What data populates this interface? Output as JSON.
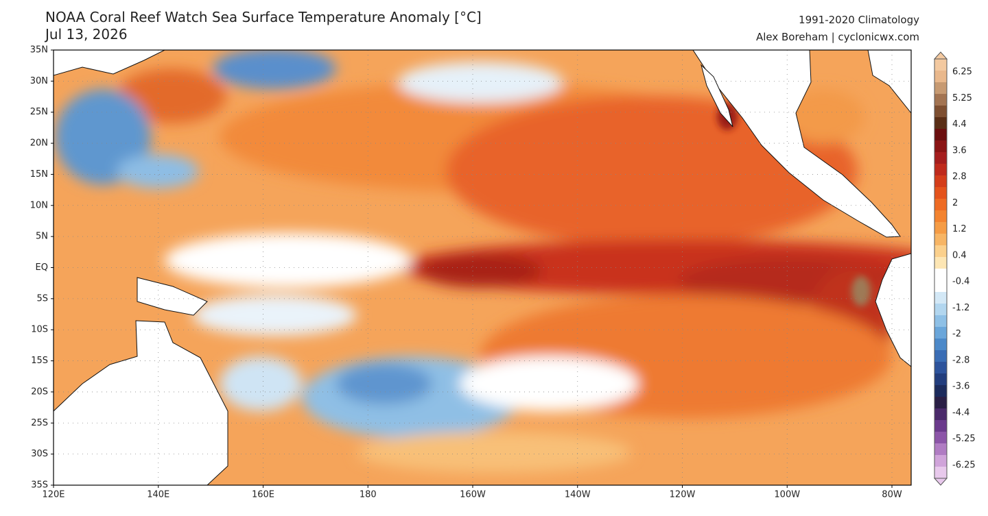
{
  "header": {
    "title": "NOAA Coral Reef Watch Sea Surface Temperature Anomaly [°C]",
    "date": "Jul 13, 2026",
    "climatology": "1991-2020 Climatology",
    "credit": "Alex Boreham | cyclonicwx.com"
  },
  "map": {
    "lat_labels": [
      "35N",
      "30N",
      "25N",
      "20N",
      "15N",
      "10N",
      "5N",
      "EQ",
      "5S",
      "10S",
      "15S",
      "20S",
      "25S",
      "30S",
      "35S"
    ],
    "lon_labels": [
      "120E",
      "140E",
      "160E",
      "180",
      "160W",
      "140W",
      "120W",
      "100W",
      "80W"
    ]
  },
  "colorbar": {
    "ticks": [
      6.25,
      5.25,
      4.4,
      3.6,
      2.8,
      2,
      1.2,
      0.4,
      -0.4,
      -1.2,
      -2,
      -2.8,
      -3.6,
      -4.4,
      -5.25,
      -6.25
    ],
    "colors": [
      "#f3c9a0",
      "#e9b88c",
      "#c79a72",
      "#a37452",
      "#7e4f31",
      "#5a2e16",
      "#6b0f0f",
      "#8a1414",
      "#a51d1d",
      "#bf2a1c",
      "#d43d1a",
      "#e4531c",
      "#ee6b24",
      "#f3832f",
      "#f59c45",
      "#f7b565",
      "#fbd08c",
      "#fde6b4",
      "#ffffff",
      "#ffffff",
      "#d3e8f6",
      "#b2d6ef",
      "#8ec0e6",
      "#6aa6da",
      "#4c89c9",
      "#3a6db5",
      "#2d539c",
      "#223d7d",
      "#1c2b5c",
      "#2a1f45",
      "#4a2a6a",
      "#6b3a8c",
      "#8c55a8",
      "#b07cc3",
      "#d0a4da",
      "#e8c9ec"
    ]
  }
}
